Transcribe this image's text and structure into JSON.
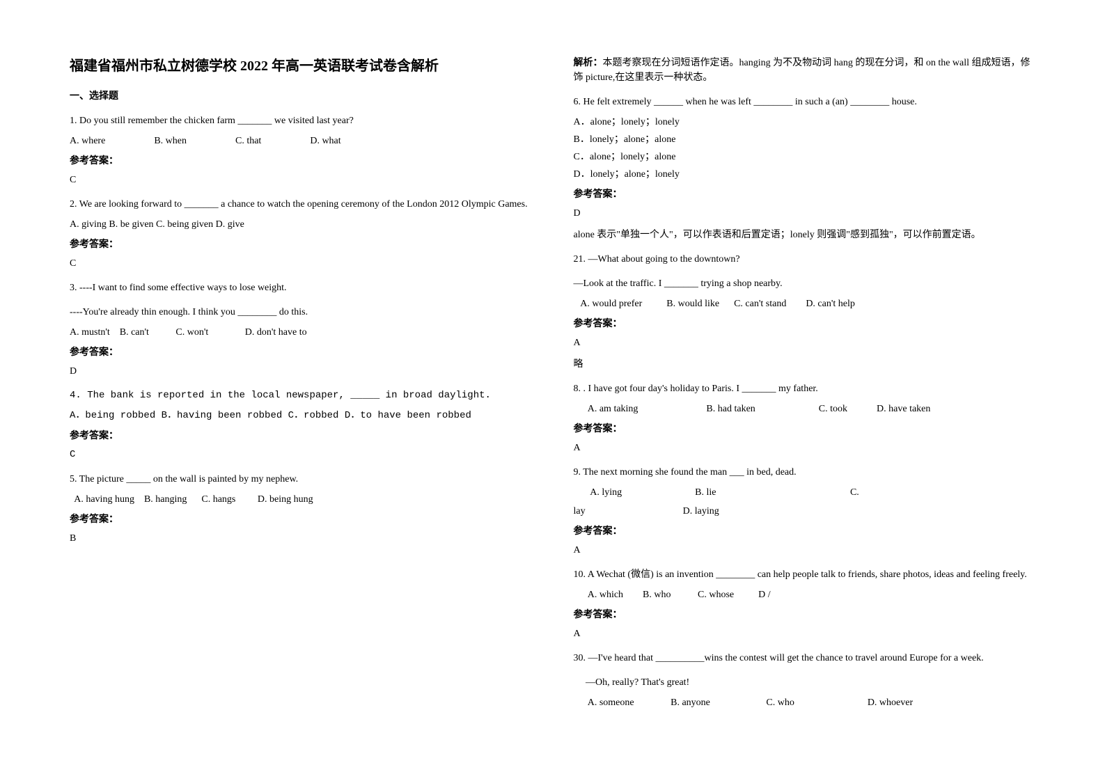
{
  "left": {
    "title": "福建省福州市私立树德学校 2022 年高一英语联考试卷含解析",
    "section": "一、选择题",
    "q1": {
      "text": "1. Do you still remember the chicken farm _______ we visited last year?",
      "optA": "A. where",
      "optB": "B. when",
      "optC": "C. that",
      "optD": "D. what",
      "ansLabel": "参考答案：",
      "ans": "C"
    },
    "q2": {
      "text": "2. We are looking forward to _______ a chance to watch the opening ceremony of the London 2012 Olympic Games.",
      "opts": "A. giving    B. be given    C. being given    D. give",
      "ansLabel": "参考答案：",
      "ans": "C"
    },
    "q3": {
      "text1": "3. ----I want to find some effective ways to lose weight.",
      "text2": "----You're already thin enough. I think you ________ do this.",
      "opts": "A. mustn't    B. can't           C. won't               D. don't have to",
      "ansLabel": "参考答案：",
      "ans": "D"
    },
    "q4": {
      "text": "4. The bank is reported in the local newspaper, _____ in broad daylight.",
      "opts": "A．being robbed   B．having been robbed     C．robbed   D．to have been robbed",
      "ansLabel": "参考答案：",
      "ans": "C"
    },
    "q5": {
      "text": "5. The picture _____ on the wall is painted by my nephew.",
      "opts": "  A. having hung    B. hanging      C. hangs         D. being hung",
      "ansLabel": "参考答案：",
      "ans": "B"
    }
  },
  "right": {
    "exp5_label": "解析：",
    "exp5": "本题考察现在分词短语作定语。hanging 为不及物动词 hang 的现在分词，和 on the wall 组成短语，修饰 picture,在这里表示一种状态。",
    "q6": {
      "text": "6. He felt extremely ______ when he was left ________ in such a (an) ________ house.",
      "optA": "A．alone；lonely；lonely",
      "optB": "B．lonely；alone；alone",
      "optC": "C．alone；lonely；alone",
      "optD": "D．lonely；alone；lonely",
      "ansLabel": "参考答案：",
      "ans": "D",
      "exp": "alone 表示\"单独一个人\"，可以作表语和后置定语；lonely 则强调\"感到孤独\"，可以作前置定语。"
    },
    "q21": {
      "text1": "21. —What about going to the downtown?",
      "text2": "—Look at the traffic. I _______ trying a shop nearby.",
      "opts": "   A. would prefer          B. would like      C. can't stand        D. can't help",
      "ansLabel": "参考答案：",
      "ans": "A",
      "note": "略"
    },
    "q8": {
      "text": "8. .  I have got four day's holiday to Paris. I _______ my father.",
      "opts": "      A. am taking                            B. had taken                          C. took            D. have taken",
      "ansLabel": "参考答案：",
      "ans": "A"
    },
    "q9": {
      "text": "9. The next morning she found the man ___ in bed, dead.",
      "optsL1": "       A. lying                              B. lie                                                       C.",
      "optsL2": "lay                                        D. laying",
      "ansLabel": "参考答案：",
      "ans": "A"
    },
    "q10": {
      "text": "10. A Wechat (微信) is an invention ________ can help people talk to friends, share photos, ideas and feeling freely.",
      "opts": "      A. which        B. who           C. whose          D /",
      "ansLabel": "参考答案：",
      "ans": "A"
    },
    "q30": {
      "text": "30. —I've heard that __________wins the contest will get the chance to travel around Europe for a week.",
      "text2": "     —Oh, really? That's great!",
      "opts": "      A. someone               B. anyone                       C. who                              D. whoever"
    }
  }
}
